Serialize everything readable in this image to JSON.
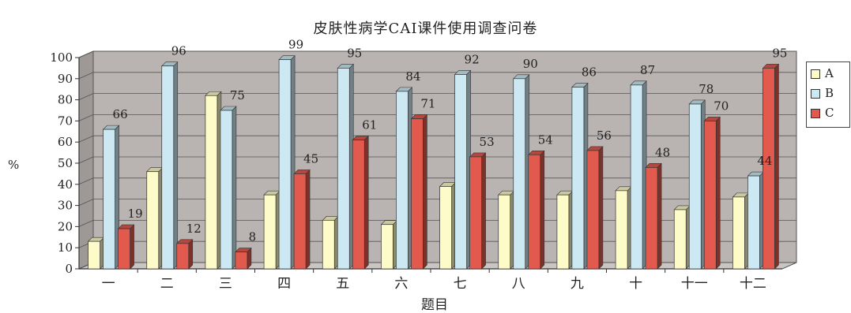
{
  "chart_data": {
    "type": "bar",
    "title": "皮肤性病学CAI课件使用调查问卷",
    "xlabel": "题目",
    "ylabel": "%",
    "ylim": [
      0,
      100
    ],
    "yticks": [
      "0",
      "10",
      "20",
      "30",
      "40",
      "50",
      "60",
      "70",
      "80",
      "90",
      "100"
    ],
    "categories": [
      "一",
      "二",
      "三",
      "四",
      "五",
      "六",
      "七",
      "八",
      "九",
      "十",
      "十一",
      "十二"
    ],
    "series": [
      {
        "name": "A",
        "color": "#fdfbc8",
        "values": [
          13,
          46,
          82,
          35,
          23,
          21,
          39,
          35,
          35,
          37,
          28,
          34
        ]
      },
      {
        "name": "B",
        "color": "#cbe8f3",
        "values": [
          66,
          96,
          75,
          99,
          95,
          84,
          92,
          90,
          86,
          87,
          78,
          44
        ]
      },
      {
        "name": "C",
        "color": "#e15a4d",
        "values": [
          19,
          12,
          8,
          45,
          61,
          71,
          53,
          54,
          56,
          48,
          70,
          95
        ]
      }
    ],
    "data_labels": {
      "B": [
        "66",
        "96",
        "75",
        "99",
        "95",
        "84",
        "92",
        "90",
        "86",
        "87",
        "78",
        "44"
      ],
      "C": [
        "19",
        "12",
        "8",
        "45",
        "61",
        "71",
        "53",
        "54",
        "56",
        "48",
        "70",
        "95"
      ]
    },
    "grid": true,
    "legend_position": "right"
  }
}
